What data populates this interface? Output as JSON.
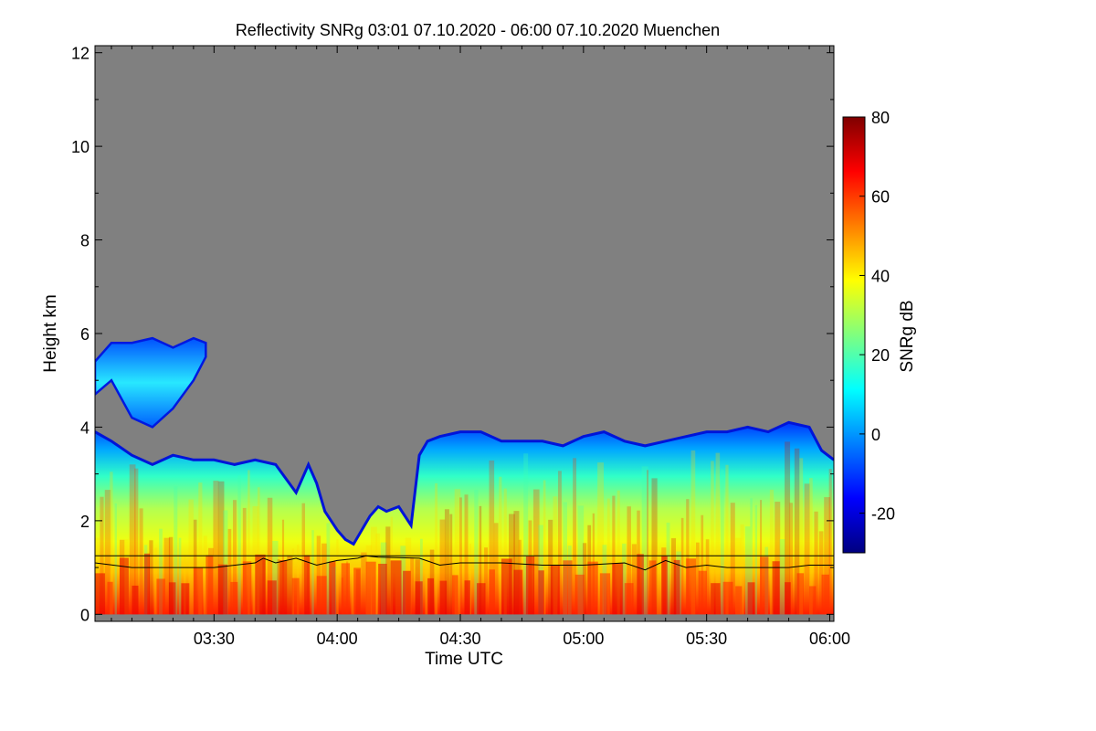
{
  "chart_data": {
    "type": "heatmap",
    "title": "Reflectivity SNRg   03:01 07.10.2020 - 06:00 07.10.2020 Muenchen",
    "xlabel": "Time UTC",
    "ylabel": "Height km",
    "x_unit": "minutes after 03:00 UTC",
    "xlim": [
      1,
      181
    ],
    "ylim": [
      -0.15,
      12.15
    ],
    "x_ticks": [
      {
        "value": 30,
        "label": "03:30"
      },
      {
        "value": 60,
        "label": "04:00"
      },
      {
        "value": 90,
        "label": "04:30"
      },
      {
        "value": 120,
        "label": "05:00"
      },
      {
        "value": 150,
        "label": "05:30"
      },
      {
        "value": 180,
        "label": "06:00"
      }
    ],
    "y_ticks": [
      {
        "value": 0,
        "label": "0"
      },
      {
        "value": 2,
        "label": "2"
      },
      {
        "value": 4,
        "label": "4"
      },
      {
        "value": 6,
        "label": "6"
      },
      {
        "value": 8,
        "label": "8"
      },
      {
        "value": 10,
        "label": "10"
      },
      {
        "value": 12,
        "label": "12"
      }
    ],
    "colorbar": {
      "label": "SNRg dB",
      "range": [
        -30,
        80
      ],
      "ticks": [
        {
          "value": -20,
          "label": "-20"
        },
        {
          "value": 0,
          "label": "0"
        },
        {
          "value": 20,
          "label": "20"
        },
        {
          "value": 40,
          "label": "40"
        },
        {
          "value": 60,
          "label": "60"
        },
        {
          "value": 80,
          "label": "80"
        }
      ],
      "colormap": [
        "#00007f",
        "#0000ff",
        "#007fff",
        "#00ffff",
        "#7fff7f",
        "#ffff00",
        "#ff7f00",
        "#ff0000",
        "#7f0000"
      ]
    },
    "background_color": "#808080",
    "echo_top_km": {
      "x": [
        1,
        5,
        10,
        15,
        20,
        25,
        30,
        35,
        40,
        45,
        50,
        53,
        55,
        57,
        60,
        62,
        64,
        66,
        68,
        70,
        72,
        75,
        78,
        80,
        82,
        85,
        90,
        95,
        100,
        105,
        110,
        115,
        120,
        125,
        130,
        135,
        140,
        145,
        150,
        155,
        160,
        165,
        170,
        175,
        178,
        181
      ],
      "top": [
        3.9,
        3.7,
        3.4,
        3.2,
        3.4,
        3.3,
        3.3,
        3.2,
        3.3,
        3.2,
        2.6,
        3.2,
        2.8,
        2.2,
        1.8,
        1.6,
        1.5,
        1.8,
        2.1,
        2.3,
        2.2,
        2.3,
        1.9,
        3.4,
        3.7,
        3.8,
        3.9,
        3.9,
        3.7,
        3.7,
        3.7,
        3.6,
        3.8,
        3.9,
        3.7,
        3.6,
        3.7,
        3.8,
        3.9,
        3.9,
        4.0,
        3.9,
        4.1,
        4.0,
        3.5,
        3.3
      ]
    },
    "upper_cloud": {
      "x": [
        1,
        5,
        10,
        15,
        20,
        25,
        28
      ],
      "bottom": [
        4.7,
        5.0,
        4.2,
        4.0,
        4.4,
        5.0,
        5.5
      ],
      "top": [
        5.4,
        5.8,
        5.8,
        5.9,
        5.7,
        5.9,
        5.8
      ]
    },
    "reference_line_km": 1.25,
    "boundary_layer_km": {
      "x": [
        1,
        10,
        20,
        30,
        40,
        42,
        45,
        50,
        55,
        60,
        65,
        67,
        70,
        80,
        85,
        90,
        95,
        100,
        110,
        120,
        130,
        135,
        140,
        145,
        150,
        155,
        160,
        170,
        175,
        181
      ],
      "y": [
        1.1,
        1.0,
        1.0,
        1.0,
        1.1,
        1.2,
        1.1,
        1.2,
        1.05,
        1.15,
        1.2,
        1.25,
        1.22,
        1.2,
        1.05,
        1.1,
        1.1,
        1.1,
        1.05,
        1.05,
        1.1,
        0.95,
        1.15,
        1.0,
        1.05,
        1.0,
        1.0,
        1.0,
        1.05,
        1.05
      ]
    }
  }
}
